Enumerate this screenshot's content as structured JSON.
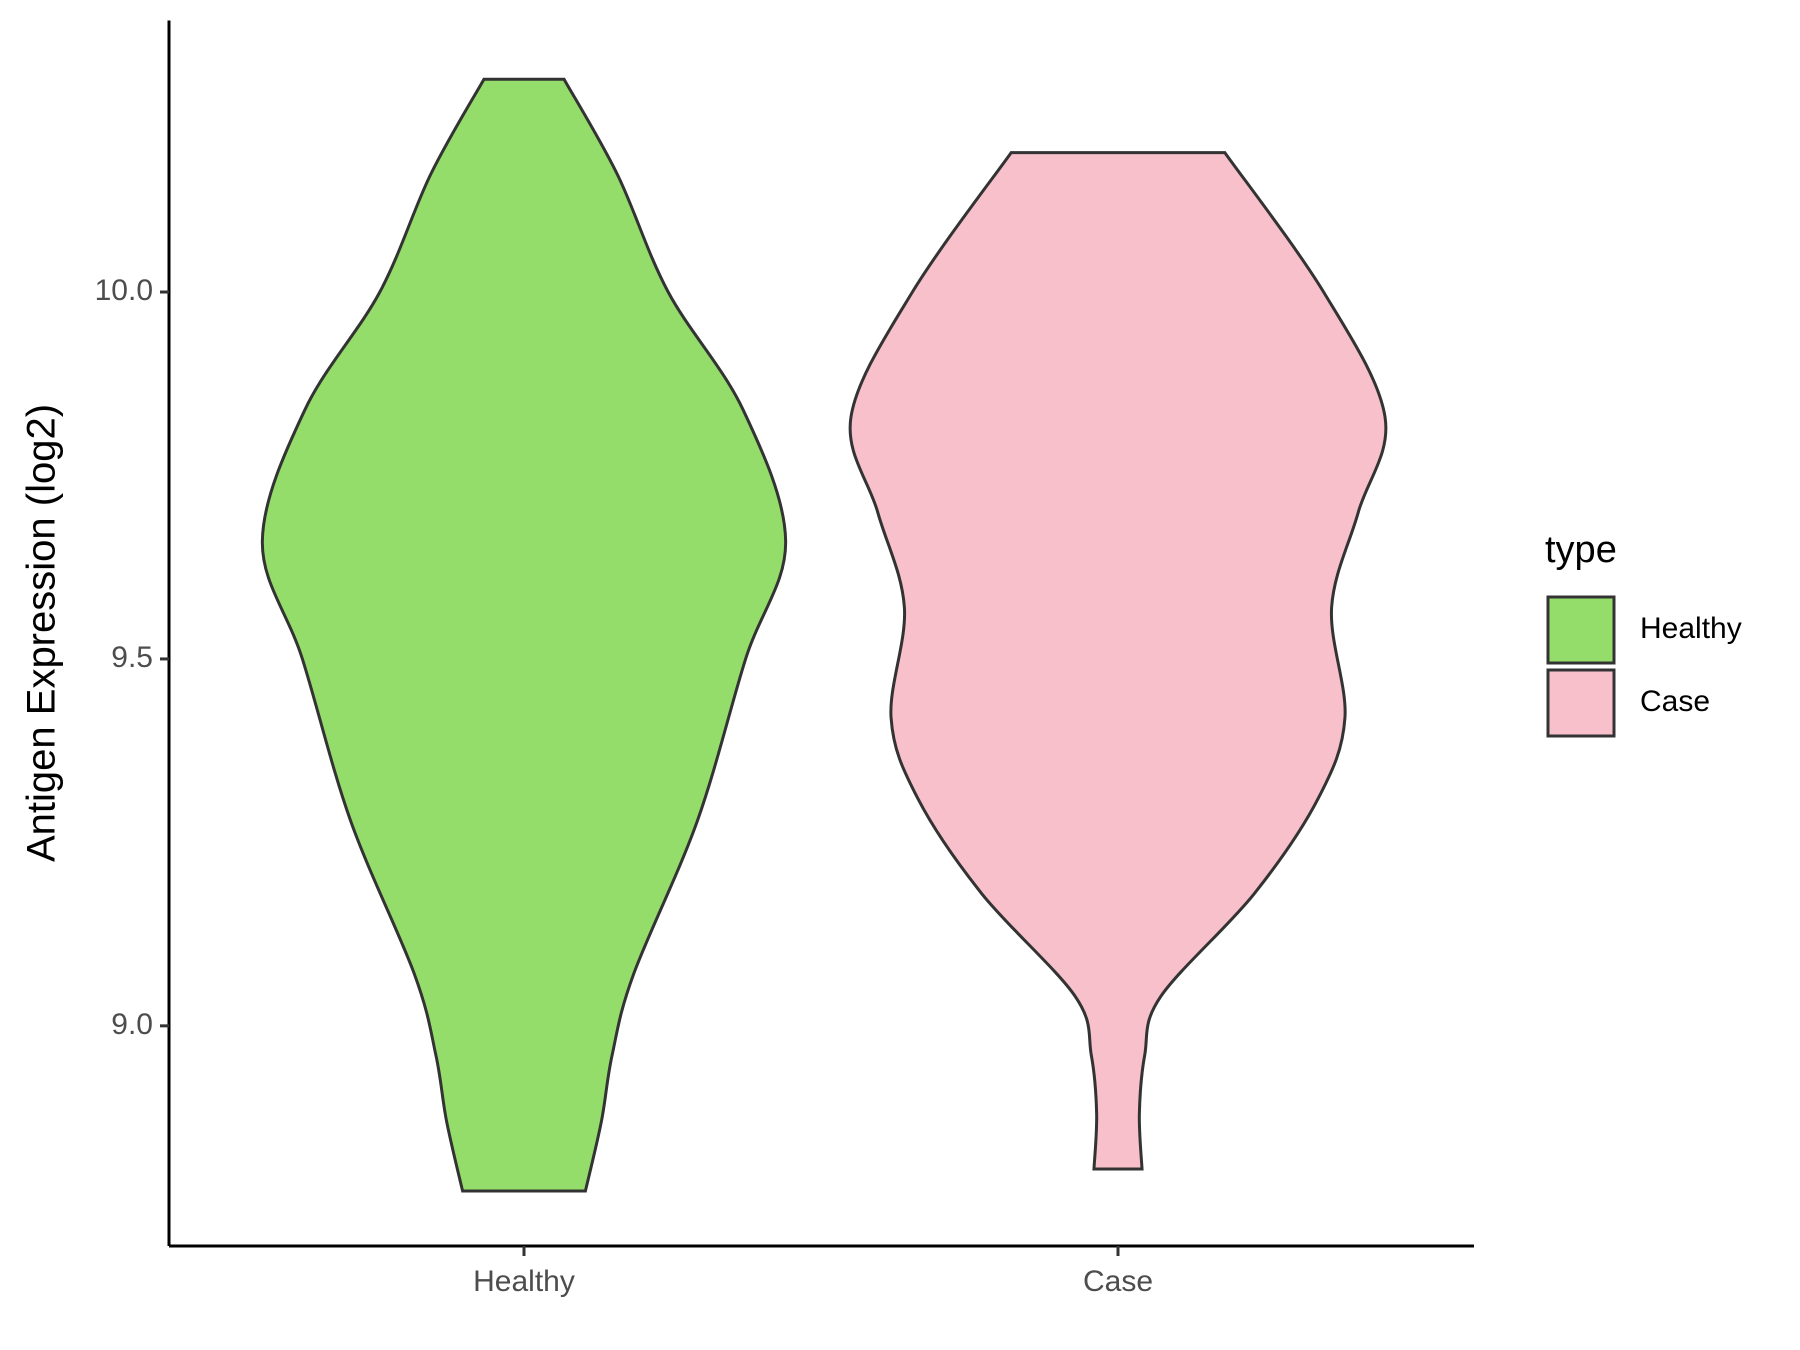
{
  "chart_data": {
    "type": "violin",
    "y_label": "Antigen Expression (log2)",
    "categories": [
      "Healthy",
      "Case"
    ],
    "legend_title": "type",
    "series": [
      {
        "name": "Healthy",
        "color": "#95dd6b",
        "y": [
          10.29,
          10.16,
          10.0,
          9.84,
          9.66,
          9.5,
          9.28,
          9.07,
          8.96,
          8.87,
          8.775
        ],
        "density": [
          0.15,
          0.35,
          0.54,
          0.82,
          0.98,
          0.83,
          0.65,
          0.41,
          0.33,
          0.29,
          0.23
        ]
      },
      {
        "name": "Case",
        "color": "#f7c0cb",
        "y": [
          10.19,
          10.0,
          9.83,
          9.7,
          9.57,
          9.42,
          9.31,
          9.18,
          9.04,
          8.96,
          8.88,
          8.805
        ],
        "density": [
          0.4,
          0.77,
          1.0,
          0.9,
          0.8,
          0.85,
          0.75,
          0.51,
          0.16,
          0.1,
          0.08,
          0.09
        ]
      }
    ],
    "ylim": [
      8.7,
      10.37
    ],
    "yticks": [
      {
        "value": 9,
        "label": "9.0"
      },
      9.5,
      {
        "value": 10,
        "label": "10.0"
      }
    ],
    "legend_position": "right"
  }
}
